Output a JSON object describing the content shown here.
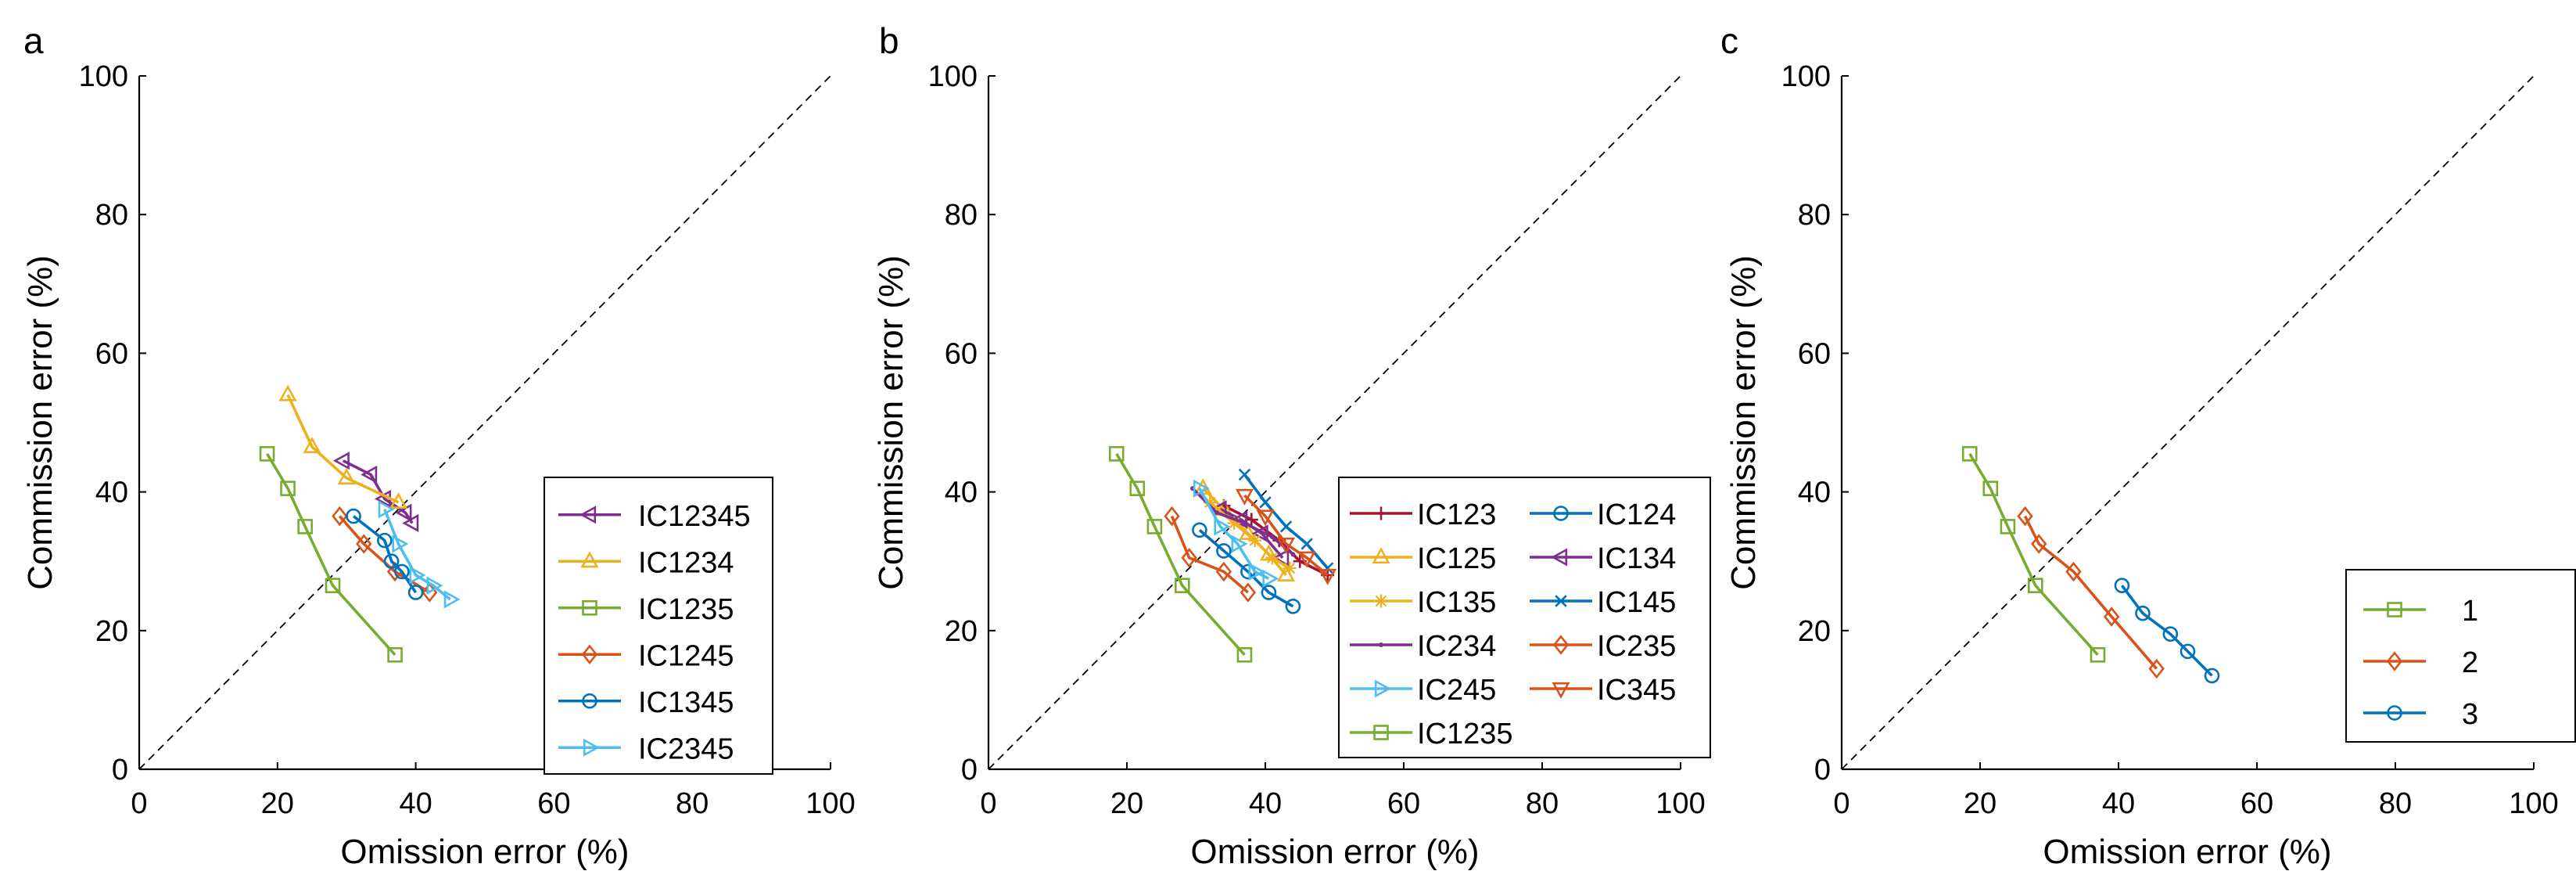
{
  "chart_data": [
    {
      "type": "line",
      "panel_label": "a",
      "xlabel": "Omission error (%)",
      "ylabel": "Commission error (%)",
      "xlim": [
        0,
        100
      ],
      "ylim": [
        0,
        100
      ],
      "xticks": [
        "0",
        "20",
        "40",
        "60",
        "80",
        "100"
      ],
      "yticks": [
        "0",
        "20",
        "40",
        "60",
        "80",
        "100"
      ],
      "reference_line": "y = x (dashed)",
      "legend_position": "bottom-right",
      "legend_columns": 1,
      "series": [
        {
          "name": "IC12345",
          "color": "#7E2F8E",
          "marker": "triangle-left",
          "x": [
            29.5,
            33.5,
            35.5,
            38.5,
            39.5
          ],
          "y": [
            44.5,
            42.5,
            39.0,
            37.0,
            35.5
          ]
        },
        {
          "name": "IC1234",
          "color": "#EDB120",
          "marker": "triangle-up",
          "x": [
            21.5,
            25,
            30,
            37.5
          ],
          "y": [
            54.0,
            46.5,
            42.0,
            38.5
          ]
        },
        {
          "name": "IC1235",
          "color": "#77AC30",
          "marker": "square",
          "x": [
            18.5,
            21.5,
            24,
            28,
            37
          ],
          "y": [
            45.5,
            40.5,
            35.0,
            26.5,
            16.5
          ]
        },
        {
          "name": "IC1245",
          "color": "#D95319",
          "marker": "diamond",
          "x": [
            29,
            32.5,
            37,
            42
          ],
          "y": [
            36.5,
            32.5,
            28.5,
            25.5
          ]
        },
        {
          "name": "IC1345",
          "color": "#0072BD",
          "marker": "circle",
          "x": [
            31,
            35.5,
            36.5,
            38,
            40
          ],
          "y": [
            36.5,
            33.0,
            30.0,
            28.5,
            25.5
          ]
        },
        {
          "name": "IC2345",
          "color": "#4DBEEE",
          "marker": "triangle-right",
          "x": [
            35.5,
            37.5,
            40,
            42.5,
            45
          ],
          "y": [
            37.5,
            32.5,
            28.0,
            26.5,
            24.5
          ]
        }
      ]
    },
    {
      "type": "line",
      "panel_label": "b",
      "xlabel": "Omission error (%)",
      "ylabel": "Commission error (%)",
      "xlim": [
        0,
        100
      ],
      "ylim": [
        0,
        100
      ],
      "xticks": [
        "0",
        "20",
        "40",
        "60",
        "80",
        "100"
      ],
      "yticks": [
        "0",
        "20",
        "40",
        "60",
        "80",
        "100"
      ],
      "reference_line": "y = x (dashed)",
      "legend_position": "bottom-right",
      "legend_columns": 2,
      "series": [
        {
          "name": "IC123",
          "color": "#A2142F",
          "marker": "plus",
          "x": [
            34,
            38,
            42,
            45,
            49
          ],
          "y": [
            38,
            36,
            33,
            30,
            28
          ]
        },
        {
          "name": "IC124",
          "color": "#0072BD",
          "marker": "circle",
          "x": [
            30.5,
            34,
            37.5,
            40.5,
            44
          ],
          "y": [
            34.5,
            31.5,
            28.5,
            25.5,
            23.5
          ]
        },
        {
          "name": "IC125",
          "color": "#EDB120",
          "marker": "triangle-up",
          "x": [
            31,
            34,
            37.5,
            40.5,
            43
          ],
          "y": [
            40.5,
            37.5,
            34,
            31,
            28
          ]
        },
        {
          "name": "IC134",
          "color": "#7E2F8E",
          "marker": "triangle-left",
          "x": [
            33.5,
            36.5,
            39.5,
            42.5
          ],
          "y": [
            37.5,
            36,
            34,
            30.5
          ]
        },
        {
          "name": "IC135",
          "color": "#EDB120",
          "marker": "asterisk",
          "x": [
            32,
            35.5,
            38.5,
            41,
            43.5
          ],
          "y": [
            38.5,
            35.5,
            33,
            30.5,
            29
          ]
        },
        {
          "name": "IC145",
          "color": "#0072BD",
          "marker": "x",
          "x": [
            37,
            40,
            43,
            46,
            49
          ],
          "y": [
            42.5,
            38.5,
            35,
            32.5,
            29
          ]
        },
        {
          "name": "IC234",
          "color": "#7E2F8E",
          "marker": "point",
          "x": [
            29.5,
            33,
            37,
            41,
            44
          ],
          "y": [
            40.5,
            37,
            35.5,
            33.5,
            31
          ]
        },
        {
          "name": "IC235",
          "color": "#D95319",
          "marker": "diamond",
          "x": [
            26.5,
            29,
            34,
            37.5
          ],
          "y": [
            36.5,
            30.5,
            28.5,
            25.5
          ]
        },
        {
          "name": "IC245",
          "color": "#4DBEEE",
          "marker": "triangle-right",
          "x": [
            30.5,
            33.5,
            36,
            38.5,
            40.5
          ],
          "y": [
            40.5,
            35,
            32.5,
            28.5,
            27.5
          ]
        },
        {
          "name": "IC345",
          "color": "#D95319",
          "marker": "triangle-down",
          "x": [
            37,
            40,
            43,
            46,
            49
          ],
          "y": [
            39.5,
            36.5,
            32.5,
            30.5,
            28
          ]
        },
        {
          "name": "IC1235",
          "color": "#77AC30",
          "marker": "square",
          "x": [
            18.5,
            21.5,
            24,
            28,
            37
          ],
          "y": [
            45.5,
            40.5,
            35.0,
            26.5,
            16.5
          ]
        }
      ]
    },
    {
      "type": "line",
      "panel_label": "c",
      "xlabel": "Omission error (%)",
      "ylabel": "Commission error (%)",
      "xlim": [
        0,
        100
      ],
      "ylim": [
        0,
        100
      ],
      "xticks": [
        "0",
        "20",
        "40",
        "60",
        "80",
        "100"
      ],
      "yticks": [
        "0",
        "20",
        "40",
        "60",
        "80",
        "100"
      ],
      "reference_line": "y = x (dashed)",
      "legend_position": "bottom-right",
      "legend_columns": 1,
      "series": [
        {
          "name": "1",
          "color": "#77AC30",
          "marker": "square",
          "x": [
            18.5,
            21.5,
            24,
            28,
            37
          ],
          "y": [
            45.5,
            40.5,
            35.0,
            26.5,
            16.5
          ]
        },
        {
          "name": "2",
          "color": "#D95319",
          "marker": "diamond",
          "x": [
            26.5,
            28.5,
            33.5,
            39,
            45.5
          ],
          "y": [
            36.5,
            32.5,
            28.5,
            22.0,
            14.5
          ]
        },
        {
          "name": "3",
          "color": "#0072BD",
          "marker": "circle",
          "x": [
            40.5,
            43.5,
            47.5,
            50,
            53.5
          ],
          "y": [
            26.5,
            22.5,
            19.5,
            17.0,
            13.5
          ]
        }
      ]
    }
  ]
}
